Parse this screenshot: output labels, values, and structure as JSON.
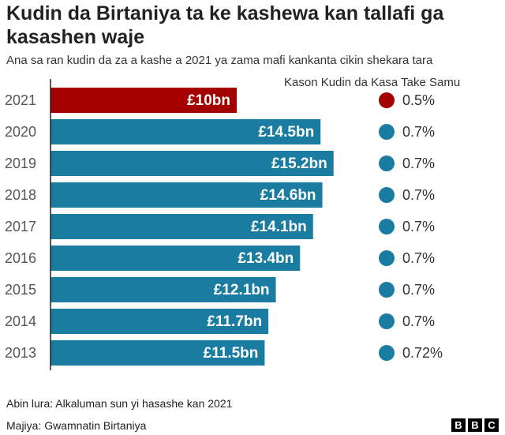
{
  "chart_data": {
    "type": "bar",
    "orientation": "horizontal",
    "title": "Kudin da Birtaniya ta ke kashewa kan tallafi ga kasashen waje",
    "subtitle": "Ana sa ran kudin da za a kashe a 2021 ya zama mafi kankanta cikin shekara tara",
    "categories": [
      "2021",
      "2020",
      "2019",
      "2018",
      "2017",
      "2016",
      "2015",
      "2014",
      "2013"
    ],
    "values": [
      10,
      14.5,
      15.2,
      14.6,
      14.1,
      13.4,
      12.1,
      11.7,
      11.5
    ],
    "value_labels": [
      "£10bn",
      "£14.5bn",
      "£15.2bn",
      "£14.6bn",
      "£14.1bn",
      "£13.4bn",
      "£12.1bn",
      "£11.7bn",
      "£11.5bn"
    ],
    "colors": [
      "#a50000",
      "#1a7ca0",
      "#1a7ca0",
      "#1a7ca0",
      "#1a7ca0",
      "#1a7ca0",
      "#1a7ca0",
      "#1a7ca0",
      "#1a7ca0"
    ],
    "share_title": "Kason Kudin da Kasa Take Samu",
    "shares": [
      0.5,
      0.7,
      0.7,
      0.7,
      0.7,
      0.7,
      0.7,
      0.7,
      0.72
    ],
    "share_labels": [
      "0.5%",
      "0.7%",
      "0.7%",
      "0.7%",
      "0.7%",
      "0.7%",
      "0.7%",
      "0.7%",
      "0.72%"
    ],
    "note": "Abin lura: Alkaluman sun yi hasashe kan 2021",
    "source": "Majiya: Gwamnatin Birtaniya",
    "logo": "BBC"
  }
}
